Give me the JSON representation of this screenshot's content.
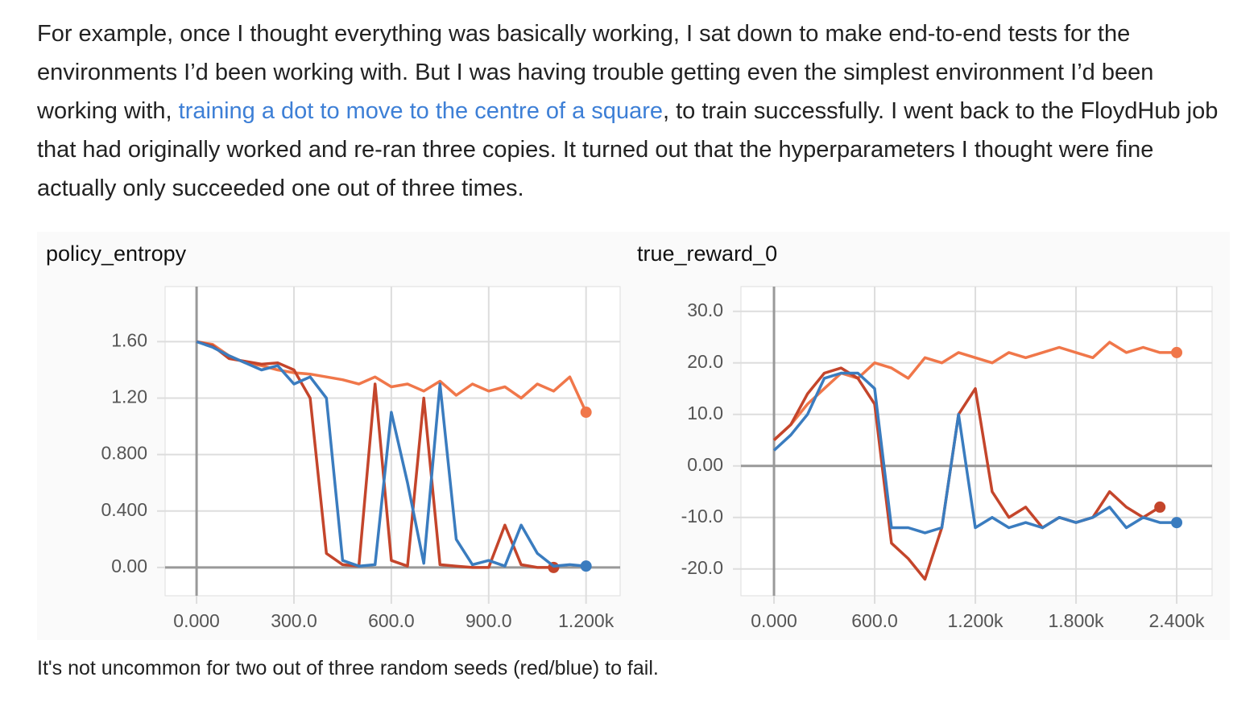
{
  "paragraph": {
    "before": "For example, once I thought everything was basically working, I sat down to make end-to-end tests for the environments I’d been working with. But I was having trouble getting even the simplest environment I’d been working with, ",
    "link": "training a dot to move to the centre of a square",
    "after": ", to train successfully. I went back to the FloydHub job that had originally worked and re-ran three copies. It turned out that the hyperparameters I thought were fine actually only succeeded one out of three times."
  },
  "caption": "It's not uncommon for two out of three random seeds (red/blue) to fail.",
  "chart_data": [
    {
      "type": "line",
      "title": "policy_entropy",
      "x": [
        0,
        50,
        100,
        150,
        200,
        250,
        300,
        350,
        400,
        450,
        500,
        550,
        600,
        650,
        700,
        750,
        800,
        850,
        900,
        950,
        1000,
        1050,
        1100,
        1150,
        1200
      ],
      "xlim": [
        -97,
        1305
      ],
      "xticks": [
        {
          "value": 0,
          "label": "0.000"
        },
        {
          "value": 300,
          "label": "300.0"
        },
        {
          "value": 600,
          "label": "600.0"
        },
        {
          "value": 900,
          "label": "900.0"
        },
        {
          "value": 1200,
          "label": "1.200k"
        }
      ],
      "ylim": [
        -0.2,
        1.99
      ],
      "yticks": [
        {
          "value": 0,
          "label": "0.00"
        },
        {
          "value": 0.4,
          "label": "0.400"
        },
        {
          "value": 0.8,
          "label": "0.800"
        },
        {
          "value": 1.2,
          "label": "1.20"
        },
        {
          "value": 1.6,
          "label": "1.60"
        }
      ],
      "grid": true,
      "series": [
        {
          "color": "#f0774a",
          "values": [
            1.6,
            1.58,
            1.5,
            1.45,
            1.43,
            1.4,
            1.38,
            1.37,
            1.35,
            1.33,
            1.3,
            1.35,
            1.28,
            1.3,
            1.25,
            1.32,
            1.22,
            1.3,
            1.25,
            1.28,
            1.2,
            1.3,
            1.25,
            1.35,
            1.1
          ]
        },
        {
          "color": "#c4452b",
          "values": [
            1.6,
            1.57,
            1.48,
            1.46,
            1.44,
            1.45,
            1.4,
            1.2,
            0.1,
            0.02,
            0.01,
            1.3,
            0.05,
            0.01,
            1.2,
            0.02,
            0.01,
            0,
            0,
            0.3,
            0.02,
            0,
            0,
            null,
            null
          ]
        },
        {
          "color": "#3a7cbf",
          "values": [
            1.6,
            1.56,
            1.5,
            1.45,
            1.4,
            1.43,
            1.3,
            1.35,
            1.2,
            0.05,
            0.01,
            0.02,
            1.1,
            0.6,
            0.03,
            1.3,
            0.2,
            0.02,
            0.05,
            0.01,
            0.3,
            0.1,
            0.01,
            0.02,
            0.01
          ]
        }
      ]
    },
    {
      "type": "line",
      "title": "true_reward_0",
      "x": [
        0,
        100,
        200,
        300,
        400,
        500,
        600,
        700,
        800,
        900,
        1000,
        1100,
        1200,
        1300,
        1400,
        1500,
        1600,
        1700,
        1800,
        1900,
        2000,
        2100,
        2200,
        2300,
        2400
      ],
      "xlim": [
        -197,
        2611
      ],
      "xticks": [
        {
          "value": 0,
          "label": "0.000"
        },
        {
          "value": 600,
          "label": "600.0"
        },
        {
          "value": 1200,
          "label": "1.200k"
        },
        {
          "value": 1800,
          "label": "1.800k"
        },
        {
          "value": 2400,
          "label": "2.400k"
        }
      ],
      "ylim": [
        -25.2,
        34.8
      ],
      "yticks": [
        {
          "value": -20,
          "label": "-20.0"
        },
        {
          "value": -10,
          "label": "-10.0"
        },
        {
          "value": 0,
          "label": "0.00"
        },
        {
          "value": 10,
          "label": "10.0"
        },
        {
          "value": 20,
          "label": "20.0"
        },
        {
          "value": 30,
          "label": "30.0"
        }
      ],
      "grid": true,
      "series": [
        {
          "color": "#f0774a",
          "values": [
            5,
            8,
            12,
            15,
            18,
            17,
            20,
            19,
            17,
            21,
            20,
            22,
            21,
            20,
            22,
            21,
            22,
            23,
            22,
            21,
            24,
            22,
            23,
            22,
            22
          ]
        },
        {
          "color": "#c4452b",
          "values": [
            5,
            8,
            14,
            18,
            19,
            17,
            12,
            -15,
            -18,
            -22,
            -12,
            10,
            15,
            -5,
            -10,
            -8,
            -12,
            -10,
            -11,
            -10,
            -5,
            -8,
            -10,
            -8,
            null
          ]
        },
        {
          "color": "#3a7cbf",
          "values": [
            3,
            6,
            10,
            17,
            18,
            18,
            15,
            -12,
            -12,
            -13,
            -12,
            10,
            -12,
            -10,
            -12,
            -11,
            -12,
            -10,
            -11,
            -10,
            -8,
            -12,
            -10,
            -11,
            -11
          ]
        }
      ]
    }
  ]
}
